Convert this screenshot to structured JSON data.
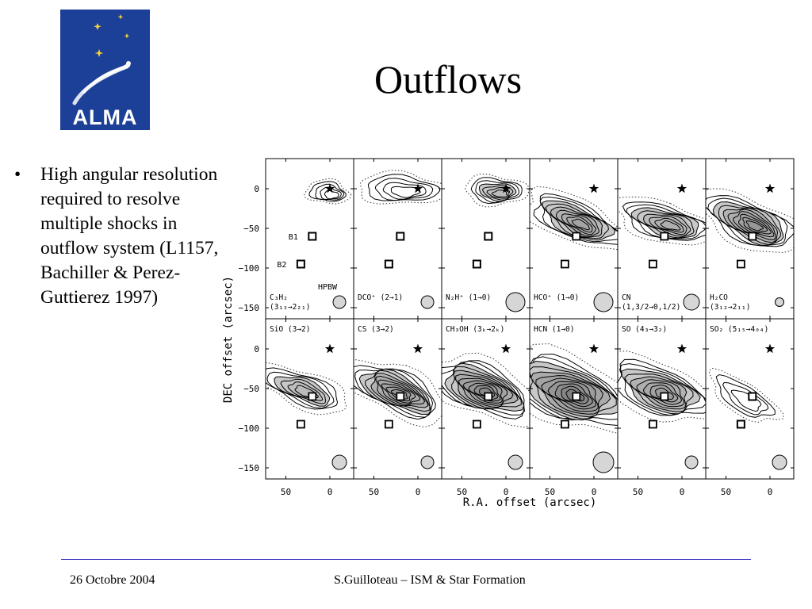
{
  "logo": {
    "text": "ALMA"
  },
  "title": "Outflows",
  "bullets": [
    {
      "marker": "•",
      "text": "High angular resolution required to resolve multiple shocks in outflow system (L1157, Bachiller & Perez-Guttierez 1997)"
    }
  ],
  "figure": {
    "ylabel": "DEC offset (arcsec)",
    "xlabel": "R.A. offset (arcsec)",
    "y_ticks": [
      "0",
      "−50",
      "−100",
      "−150"
    ],
    "x_ticks": [
      "50",
      "0"
    ],
    "source_labels": [
      "B1",
      "B2"
    ],
    "beam_label": "HPBW",
    "panels": [
      {
        "mol": "C₃H₂",
        "trans": "(3₁₂→2₂₁)"
      },
      {
        "mol": "DCO⁺",
        "trans": "(2→1)"
      },
      {
        "mol": "N₂H⁺",
        "trans": "(1→0)"
      },
      {
        "mol": "HCO⁺",
        "trans": "(1→0)"
      },
      {
        "mol": "CN",
        "trans": "(1,3/2→0,1/2)"
      },
      {
        "mol": "H₂CO",
        "trans": "(3₁₂→2₁₁)"
      },
      {
        "mol": "SiO",
        "trans": "(3→2)"
      },
      {
        "mol": "CS",
        "trans": "(3→2)"
      },
      {
        "mol": "CH₃OH",
        "trans": "(3ₖ→2ₖ)"
      },
      {
        "mol": "HCN",
        "trans": "(1→0)"
      },
      {
        "mol": "SO",
        "trans": "(4₃→3₂)"
      },
      {
        "mol": "SO₂",
        "trans": "(5₁₅→4₀₄)"
      }
    ]
  },
  "footer": {
    "date": "26 Octobre 2004",
    "author": "S.Guilloteau – ISM & Star Formation"
  },
  "colors": {
    "logo_bg": "#1c3f97",
    "footer_line": "#3a36c8"
  }
}
